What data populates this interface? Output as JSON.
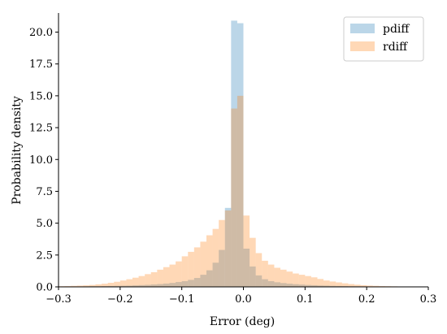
{
  "chart_data": {
    "type": "histogram",
    "xlabel": "Error (deg)",
    "ylabel": "Probability density",
    "xlim": [
      -0.3,
      0.3
    ],
    "ylim": [
      0,
      21.5
    ],
    "xticks": [
      -0.3,
      -0.2,
      -0.1,
      0.0,
      0.1,
      0.2,
      0.3
    ],
    "xtick_labels": [
      "−0.3",
      "−0.2",
      "−0.1",
      "0.0",
      "0.1",
      "0.2",
      "0.3"
    ],
    "yticks": [
      0,
      2.5,
      5,
      7.5,
      10,
      12.5,
      15,
      17.5,
      20
    ],
    "ytick_labels": [
      "0.0",
      "2.5",
      "5.0",
      "7.5",
      "10.0",
      "12.5",
      "15.0",
      "17.5",
      "20.0"
    ],
    "bin_edges": [
      -0.3,
      -0.29,
      -0.28,
      -0.27,
      -0.26,
      -0.25,
      -0.24,
      -0.23,
      -0.22,
      -0.21,
      -0.2,
      -0.19,
      -0.18,
      -0.17,
      -0.16,
      -0.15,
      -0.14,
      -0.13,
      -0.12,
      -0.11,
      -0.1,
      -0.09,
      -0.08,
      -0.07,
      -0.06,
      -0.05,
      -0.04,
      -0.03,
      -0.02,
      -0.01,
      0.0,
      0.01,
      0.02,
      0.03,
      0.04,
      0.05,
      0.06,
      0.07,
      0.08,
      0.09,
      0.1,
      0.11,
      0.12,
      0.13,
      0.14,
      0.15,
      0.16,
      0.17,
      0.18,
      0.19,
      0.2,
      0.21,
      0.22,
      0.23,
      0.24,
      0.25,
      0.26,
      0.27,
      0.28,
      0.29,
      0.3
    ],
    "series": [
      {
        "name": "pdiff",
        "color": "#1f77b4",
        "alpha": 0.3,
        "values": [
          0.02,
          0.02,
          0.03,
          0.03,
          0.04,
          0.05,
          0.05,
          0.06,
          0.07,
          0.08,
          0.09,
          0.1,
          0.12,
          0.14,
          0.16,
          0.19,
          0.22,
          0.26,
          0.31,
          0.38,
          0.45,
          0.55,
          0.7,
          0.95,
          1.3,
          1.9,
          2.9,
          6.2,
          20.9,
          20.7,
          3.0,
          1.6,
          0.9,
          0.6,
          0.45,
          0.36,
          0.3,
          0.25,
          0.21,
          0.18,
          0.15,
          0.13,
          0.11,
          0.1,
          0.08,
          0.07,
          0.06,
          0.05,
          0.05,
          0.04,
          0.03,
          0.03,
          0.03,
          0.02,
          0.02,
          0.02,
          0.01,
          0.01,
          0.01,
          0.01
        ]
      },
      {
        "name": "rdiff",
        "color": "#ff7f0e",
        "alpha": 0.3,
        "values": [
          0.05,
          0.06,
          0.08,
          0.1,
          0.12,
          0.15,
          0.2,
          0.25,
          0.32,
          0.4,
          0.5,
          0.6,
          0.72,
          0.85,
          1.0,
          1.15,
          1.35,
          1.55,
          1.75,
          2.0,
          2.4,
          2.75,
          3.1,
          3.55,
          4.05,
          4.55,
          5.25,
          6.0,
          14.0,
          15.0,
          5.6,
          3.85,
          2.65,
          2.05,
          1.75,
          1.5,
          1.35,
          1.2,
          1.05,
          0.95,
          0.85,
          0.75,
          0.62,
          0.5,
          0.42,
          0.35,
          0.28,
          0.22,
          0.17,
          0.13,
          0.1,
          0.08,
          0.06,
          0.05,
          0.04,
          0.03,
          0.02,
          0.02,
          0.01,
          0.01
        ]
      }
    ],
    "legend": {
      "position": "top-right",
      "entries": [
        "pdiff",
        "rdiff"
      ]
    },
    "grid": false
  }
}
